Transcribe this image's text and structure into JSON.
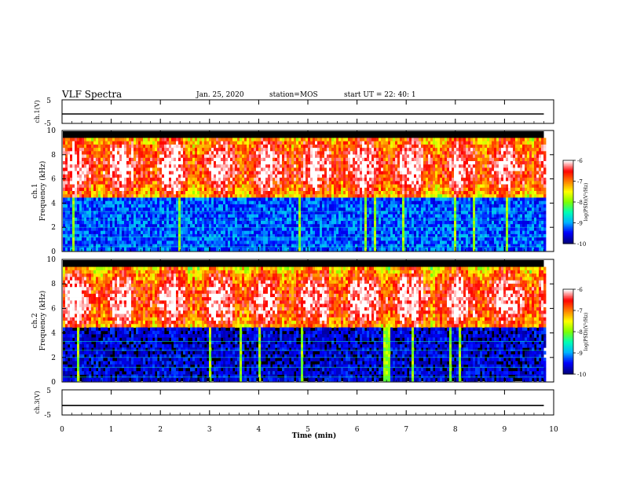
{
  "header": {
    "title": "VLF Spectra",
    "date": "Jan. 25, 2020",
    "station": "station=MOS",
    "start": "start UT =  22: 40: 1"
  },
  "chart_data": [
    {
      "type": "line",
      "name": "ch1-voltage",
      "ylabel": "ch.1(V)",
      "ylim": [
        -5,
        5
      ],
      "yticks": [
        "5",
        "-5"
      ],
      "x": [
        0,
        9.8
      ],
      "values": [
        -1,
        -1
      ]
    },
    {
      "type": "heatmap",
      "name": "ch1-spectrogram",
      "ylabel": "ch.1\nFrequency (kHz)",
      "ylim": [
        0,
        10
      ],
      "yticks": [
        "0",
        "2",
        "4",
        "6",
        "8",
        "10"
      ],
      "xlim": [
        0,
        10
      ],
      "data_extent_min": 9.8,
      "band_center_khz": 7,
      "colorbar": {
        "label": "log(PSD)(V²/Hz)",
        "range": [
          -10,
          -6
        ],
        "ticks": [
          "-6",
          "-7",
          "-8",
          "-9",
          "-10"
        ]
      }
    },
    {
      "type": "heatmap",
      "name": "ch2-spectrogram",
      "ylabel": "ch.2\nFrequency (kHz)",
      "ylim": [
        0,
        10
      ],
      "yticks": [
        "0",
        "2",
        "4",
        "6",
        "8",
        "10"
      ],
      "xlim": [
        0,
        10
      ],
      "data_extent_min": 9.8,
      "band_center_khz": 6.7,
      "colorbar": {
        "label": "log(PSD)(V²/Hz)",
        "range": [
          -10,
          -6
        ],
        "ticks": [
          "-6",
          "-7",
          "-8",
          "-9",
          "-10"
        ]
      }
    },
    {
      "type": "line",
      "name": "ch3-voltage",
      "ylabel": "ch.3(V)",
      "ylim": [
        -5,
        5
      ],
      "yticks": [
        "5",
        "-5"
      ],
      "x": [
        0,
        9.8
      ],
      "values": [
        -1.2,
        -1.2
      ]
    }
  ],
  "xaxis": {
    "label": "Time (min)",
    "range": [
      0,
      10
    ],
    "ticks": [
      "0",
      "1",
      "2",
      "3",
      "4",
      "5",
      "6",
      "7",
      "8",
      "9",
      "10"
    ]
  },
  "colors": {
    "colormap": [
      "#00007f",
      "#0000ff",
      "#00b4ff",
      "#00ffb4",
      "#7fff00",
      "#ffff00",
      "#ff7f00",
      "#ff0000",
      "#ffffff"
    ]
  }
}
